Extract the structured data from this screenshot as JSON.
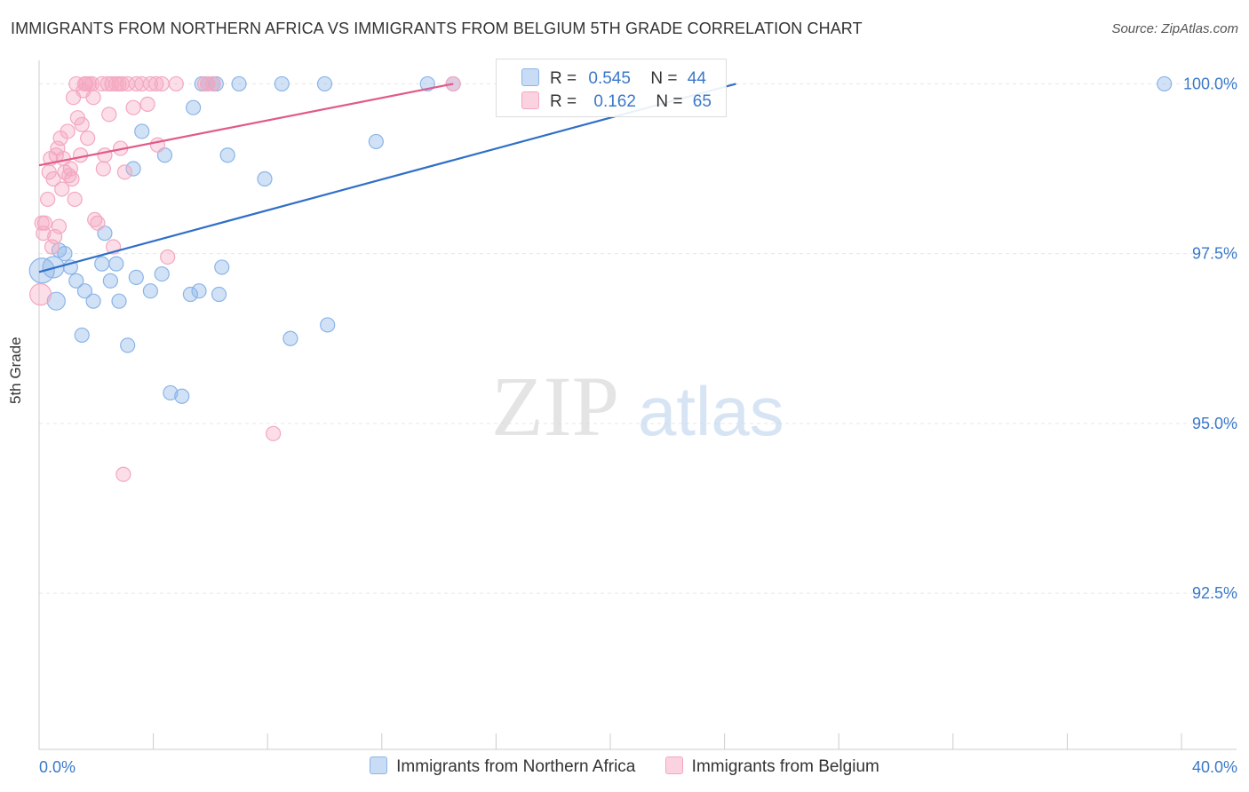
{
  "title": "IMMIGRANTS FROM NORTHERN AFRICA VS IMMIGRANTS FROM BELGIUM 5TH GRADE CORRELATION CHART",
  "source": "Source: ZipAtlas.com",
  "watermark": {
    "zip": "ZIP",
    "atlas": "atlas"
  },
  "legend": {
    "rows": [
      {
        "r_label": "R =",
        "r_value": "0.545",
        "n_label": "N =",
        "n_value": "44"
      },
      {
        "r_label": "R =",
        "r_value": "0.162",
        "n_label": "N =",
        "n_value": "65"
      }
    ]
  },
  "chart_data": {
    "type": "scatter",
    "title": "IMMIGRANTS FROM NORTHERN AFRICA VS IMMIGRANTS FROM BELGIUM 5TH GRADE CORRELATION CHART",
    "xlabel": "",
    "ylabel": "5th Grade",
    "xlim": [
      0,
      40
    ],
    "ylim": [
      90.2,
      100.45
    ],
    "x_tick_labels": [
      "0.0%",
      "40.0%"
    ],
    "y_ticks": [
      92.5,
      95.0,
      97.5,
      100.0
    ],
    "y_tick_labels": [
      "92.5%",
      "95.0%",
      "97.5%",
      "100.0%"
    ],
    "grid": true,
    "legend_position": "top-center",
    "series": [
      {
        "name": "Immigrants from Northern Africa",
        "color": "#8ab4e8",
        "line_color": "#2f6fc7",
        "R": 0.545,
        "N": 44,
        "trend": {
          "x": [
            0,
            24.4
          ],
          "y": [
            97.23,
            100.0
          ]
        },
        "points": [
          [
            0.1,
            97.25,
            14
          ],
          [
            0.5,
            97.3,
            12
          ],
          [
            0.6,
            96.8,
            10
          ],
          [
            0.7,
            97.55,
            8
          ],
          [
            0.9,
            97.5,
            8
          ],
          [
            1.1,
            97.3,
            8
          ],
          [
            1.3,
            97.1,
            8
          ],
          [
            1.5,
            96.3,
            8
          ],
          [
            1.6,
            96.95,
            8
          ],
          [
            1.9,
            96.8,
            8
          ],
          [
            2.3,
            97.8,
            8
          ],
          [
            2.2,
            97.35,
            8
          ],
          [
            2.5,
            97.1,
            8
          ],
          [
            2.7,
            97.35,
            8
          ],
          [
            2.8,
            96.8,
            8
          ],
          [
            3.1,
            96.15,
            8
          ],
          [
            3.3,
            98.75,
            8
          ],
          [
            3.4,
            97.15,
            8
          ],
          [
            3.6,
            99.3,
            8
          ],
          [
            3.9,
            96.95,
            8
          ],
          [
            4.3,
            97.2,
            8
          ],
          [
            4.4,
            98.95,
            8
          ],
          [
            4.6,
            95.45,
            8
          ],
          [
            5.0,
            95.4,
            8
          ],
          [
            5.3,
            96.9,
            8
          ],
          [
            5.4,
            99.65,
            8
          ],
          [
            5.6,
            96.95,
            8
          ],
          [
            5.7,
            100.0,
            8
          ],
          [
            5.9,
            100.0,
            8
          ],
          [
            6.1,
            100.0,
            8
          ],
          [
            6.2,
            100.0,
            8
          ],
          [
            6.3,
            96.9,
            8
          ],
          [
            6.4,
            97.3,
            8
          ],
          [
            6.6,
            98.95,
            8
          ],
          [
            7.0,
            100.0,
            8
          ],
          [
            7.9,
            98.6,
            8
          ],
          [
            8.5,
            100.0,
            8
          ],
          [
            8.8,
            96.25,
            8
          ],
          [
            10.0,
            100.0,
            8
          ],
          [
            10.1,
            96.45,
            8
          ],
          [
            11.8,
            99.15,
            8
          ],
          [
            13.6,
            100.0,
            8
          ],
          [
            14.5,
            100.0,
            8
          ],
          [
            39.4,
            100.0,
            8
          ]
        ]
      },
      {
        "name": "Immigrants from Belgium",
        "color": "#f4a7c0",
        "line_color": "#e05a8a",
        "R": 0.162,
        "N": 65,
        "trend": {
          "x": [
            0,
            14.5
          ],
          "y": [
            98.8,
            100.0
          ]
        },
        "points": [
          [
            0.05,
            96.9,
            12
          ],
          [
            0.1,
            97.95,
            8
          ],
          [
            0.15,
            97.8,
            8
          ],
          [
            0.2,
            97.95,
            8
          ],
          [
            0.3,
            98.3,
            8
          ],
          [
            0.35,
            98.7,
            8
          ],
          [
            0.4,
            98.9,
            8
          ],
          [
            0.45,
            97.6,
            8
          ],
          [
            0.5,
            98.6,
            8
          ],
          [
            0.55,
            97.75,
            8
          ],
          [
            0.6,
            98.95,
            8
          ],
          [
            0.65,
            99.05,
            8
          ],
          [
            0.7,
            97.9,
            8
          ],
          [
            0.75,
            99.2,
            8
          ],
          [
            0.8,
            98.45,
            8
          ],
          [
            0.85,
            98.9,
            8
          ],
          [
            0.9,
            98.7,
            8
          ],
          [
            1.0,
            99.3,
            8
          ],
          [
            1.05,
            98.65,
            8
          ],
          [
            1.1,
            98.75,
            8
          ],
          [
            1.15,
            98.6,
            8
          ],
          [
            1.2,
            99.8,
            8
          ],
          [
            1.25,
            98.3,
            8
          ],
          [
            1.3,
            100.0,
            8
          ],
          [
            1.35,
            99.5,
            8
          ],
          [
            1.45,
            98.95,
            8
          ],
          [
            1.5,
            99.4,
            8
          ],
          [
            1.55,
            99.9,
            8
          ],
          [
            1.6,
            100.0,
            8
          ],
          [
            1.65,
            100.0,
            8
          ],
          [
            1.7,
            99.2,
            8
          ],
          [
            1.75,
            100.0,
            8
          ],
          [
            1.85,
            100.0,
            8
          ],
          [
            1.9,
            99.8,
            8
          ],
          [
            1.95,
            98.0,
            8
          ],
          [
            2.05,
            97.95,
            8
          ],
          [
            2.2,
            100.0,
            8
          ],
          [
            2.25,
            98.75,
            8
          ],
          [
            2.3,
            98.95,
            8
          ],
          [
            2.4,
            100.0,
            8
          ],
          [
            2.45,
            99.55,
            8
          ],
          [
            2.55,
            100.0,
            8
          ],
          [
            2.6,
            97.6,
            8
          ],
          [
            2.7,
            100.0,
            8
          ],
          [
            2.8,
            100.0,
            8
          ],
          [
            2.85,
            99.05,
            8
          ],
          [
            2.9,
            100.0,
            8
          ],
          [
            2.95,
            94.25,
            8
          ],
          [
            3.0,
            98.7,
            8
          ],
          [
            3.1,
            100.0,
            8
          ],
          [
            3.3,
            99.65,
            8
          ],
          [
            3.4,
            100.0,
            8
          ],
          [
            3.6,
            100.0,
            8
          ],
          [
            3.8,
            99.7,
            8
          ],
          [
            3.9,
            100.0,
            8
          ],
          [
            4.1,
            100.0,
            8
          ],
          [
            4.15,
            99.1,
            8
          ],
          [
            4.3,
            100.0,
            8
          ],
          [
            4.5,
            97.45,
            8
          ],
          [
            4.8,
            100.0,
            8
          ],
          [
            5.8,
            100.0,
            8
          ],
          [
            5.9,
            100.0,
            8
          ],
          [
            6.1,
            100.0,
            8
          ],
          [
            8.2,
            94.85,
            8
          ],
          [
            14.5,
            100.0,
            8
          ]
        ]
      }
    ]
  }
}
